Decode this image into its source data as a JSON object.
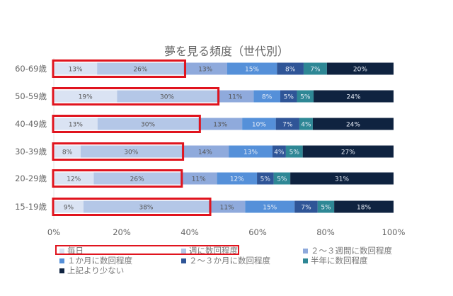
{
  "chart_data": {
    "type": "bar",
    "orientation": "horizontal",
    "stacked": true,
    "title": "夢を見る頻度（世代別）",
    "categories": [
      "60-69歳",
      "50-59歳",
      "40-49歳",
      "30-39歳",
      "20-29歳",
      "15-19歳"
    ],
    "xlim": [
      0,
      100
    ],
    "xticks": [
      "0%",
      "20%",
      "40%",
      "60%",
      "80%",
      "100%"
    ],
    "grid": false,
    "legend_position": "bottom",
    "series": [
      {
        "name": "毎日",
        "color": "#dae3f3",
        "values": [
          13,
          19,
          13,
          8,
          12,
          9
        ]
      },
      {
        "name": "週に数回程度",
        "color": "#b4c7e7",
        "values": [
          26,
          30,
          30,
          30,
          26,
          38
        ]
      },
      {
        "name": "２～３週間に数回程度",
        "color": "#8faadc",
        "values": [
          13,
          11,
          13,
          14,
          11,
          11
        ]
      },
      {
        "name": "１か月に数回程度",
        "color": "#5590d9",
        "values": [
          15,
          8,
          10,
          13,
          12,
          15
        ]
      },
      {
        "name": "２～３か月に数回程度",
        "color": "#2f5597",
        "values": [
          8,
          5,
          7,
          4,
          5,
          7
        ]
      },
      {
        "name": "半年に数回程度",
        "color": "#2e8795",
        "values": [
          7,
          5,
          4,
          5,
          5,
          5
        ]
      },
      {
        "name": "上記より少ない",
        "color": "#0f2340",
        "values": [
          20,
          24,
          24,
          27,
          31,
          18
        ]
      }
    ],
    "highlight": {
      "color": "#e0141e",
      "series": [
        "毎日",
        "週に数回程度"
      ]
    }
  }
}
